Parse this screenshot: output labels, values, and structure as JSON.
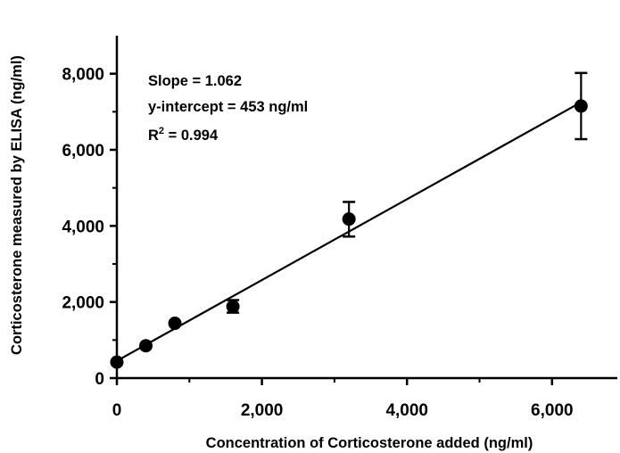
{
  "chart_data": {
    "type": "scatter",
    "title": "",
    "xlabel": "Concentration of Corticosterone added (ng/ml)",
    "ylabel": "Corticosterone measured by ELISA (ng/ml)",
    "xlim": [
      0,
      6900
    ],
    "ylim": [
      0,
      9000
    ],
    "x_ticks": [
      0,
      2000,
      4000,
      6000
    ],
    "x_tick_labels": [
      "0",
      "2,000",
      "4,000",
      "6,000"
    ],
    "y_ticks": [
      0,
      2000,
      4000,
      6000,
      8000
    ],
    "y_tick_labels": [
      "0",
      "2,000",
      "4,000",
      "6,000",
      "8,000"
    ],
    "grid": false,
    "series": [
      {
        "x": [
          0,
          400,
          800,
          1600,
          3200,
          6400
        ],
        "y": [
          420,
          850,
          1440,
          1880,
          4180,
          7150
        ],
        "error_low": [
          400,
          840,
          1420,
          1720,
          3720,
          6280
        ],
        "error_high": [
          440,
          860,
          1460,
          2050,
          4630,
          8020
        ]
      }
    ],
    "fit_line": {
      "slope": 1.062,
      "intercept": 453,
      "x_range": [
        0,
        6400
      ]
    },
    "annotations": {
      "slope": "Slope = 1.062",
      "intercept": "y-intercept = 453 ng/ml",
      "r2_prefix": "R",
      "r2_sup": "2",
      "r2_suffix": " = 0.994"
    }
  }
}
